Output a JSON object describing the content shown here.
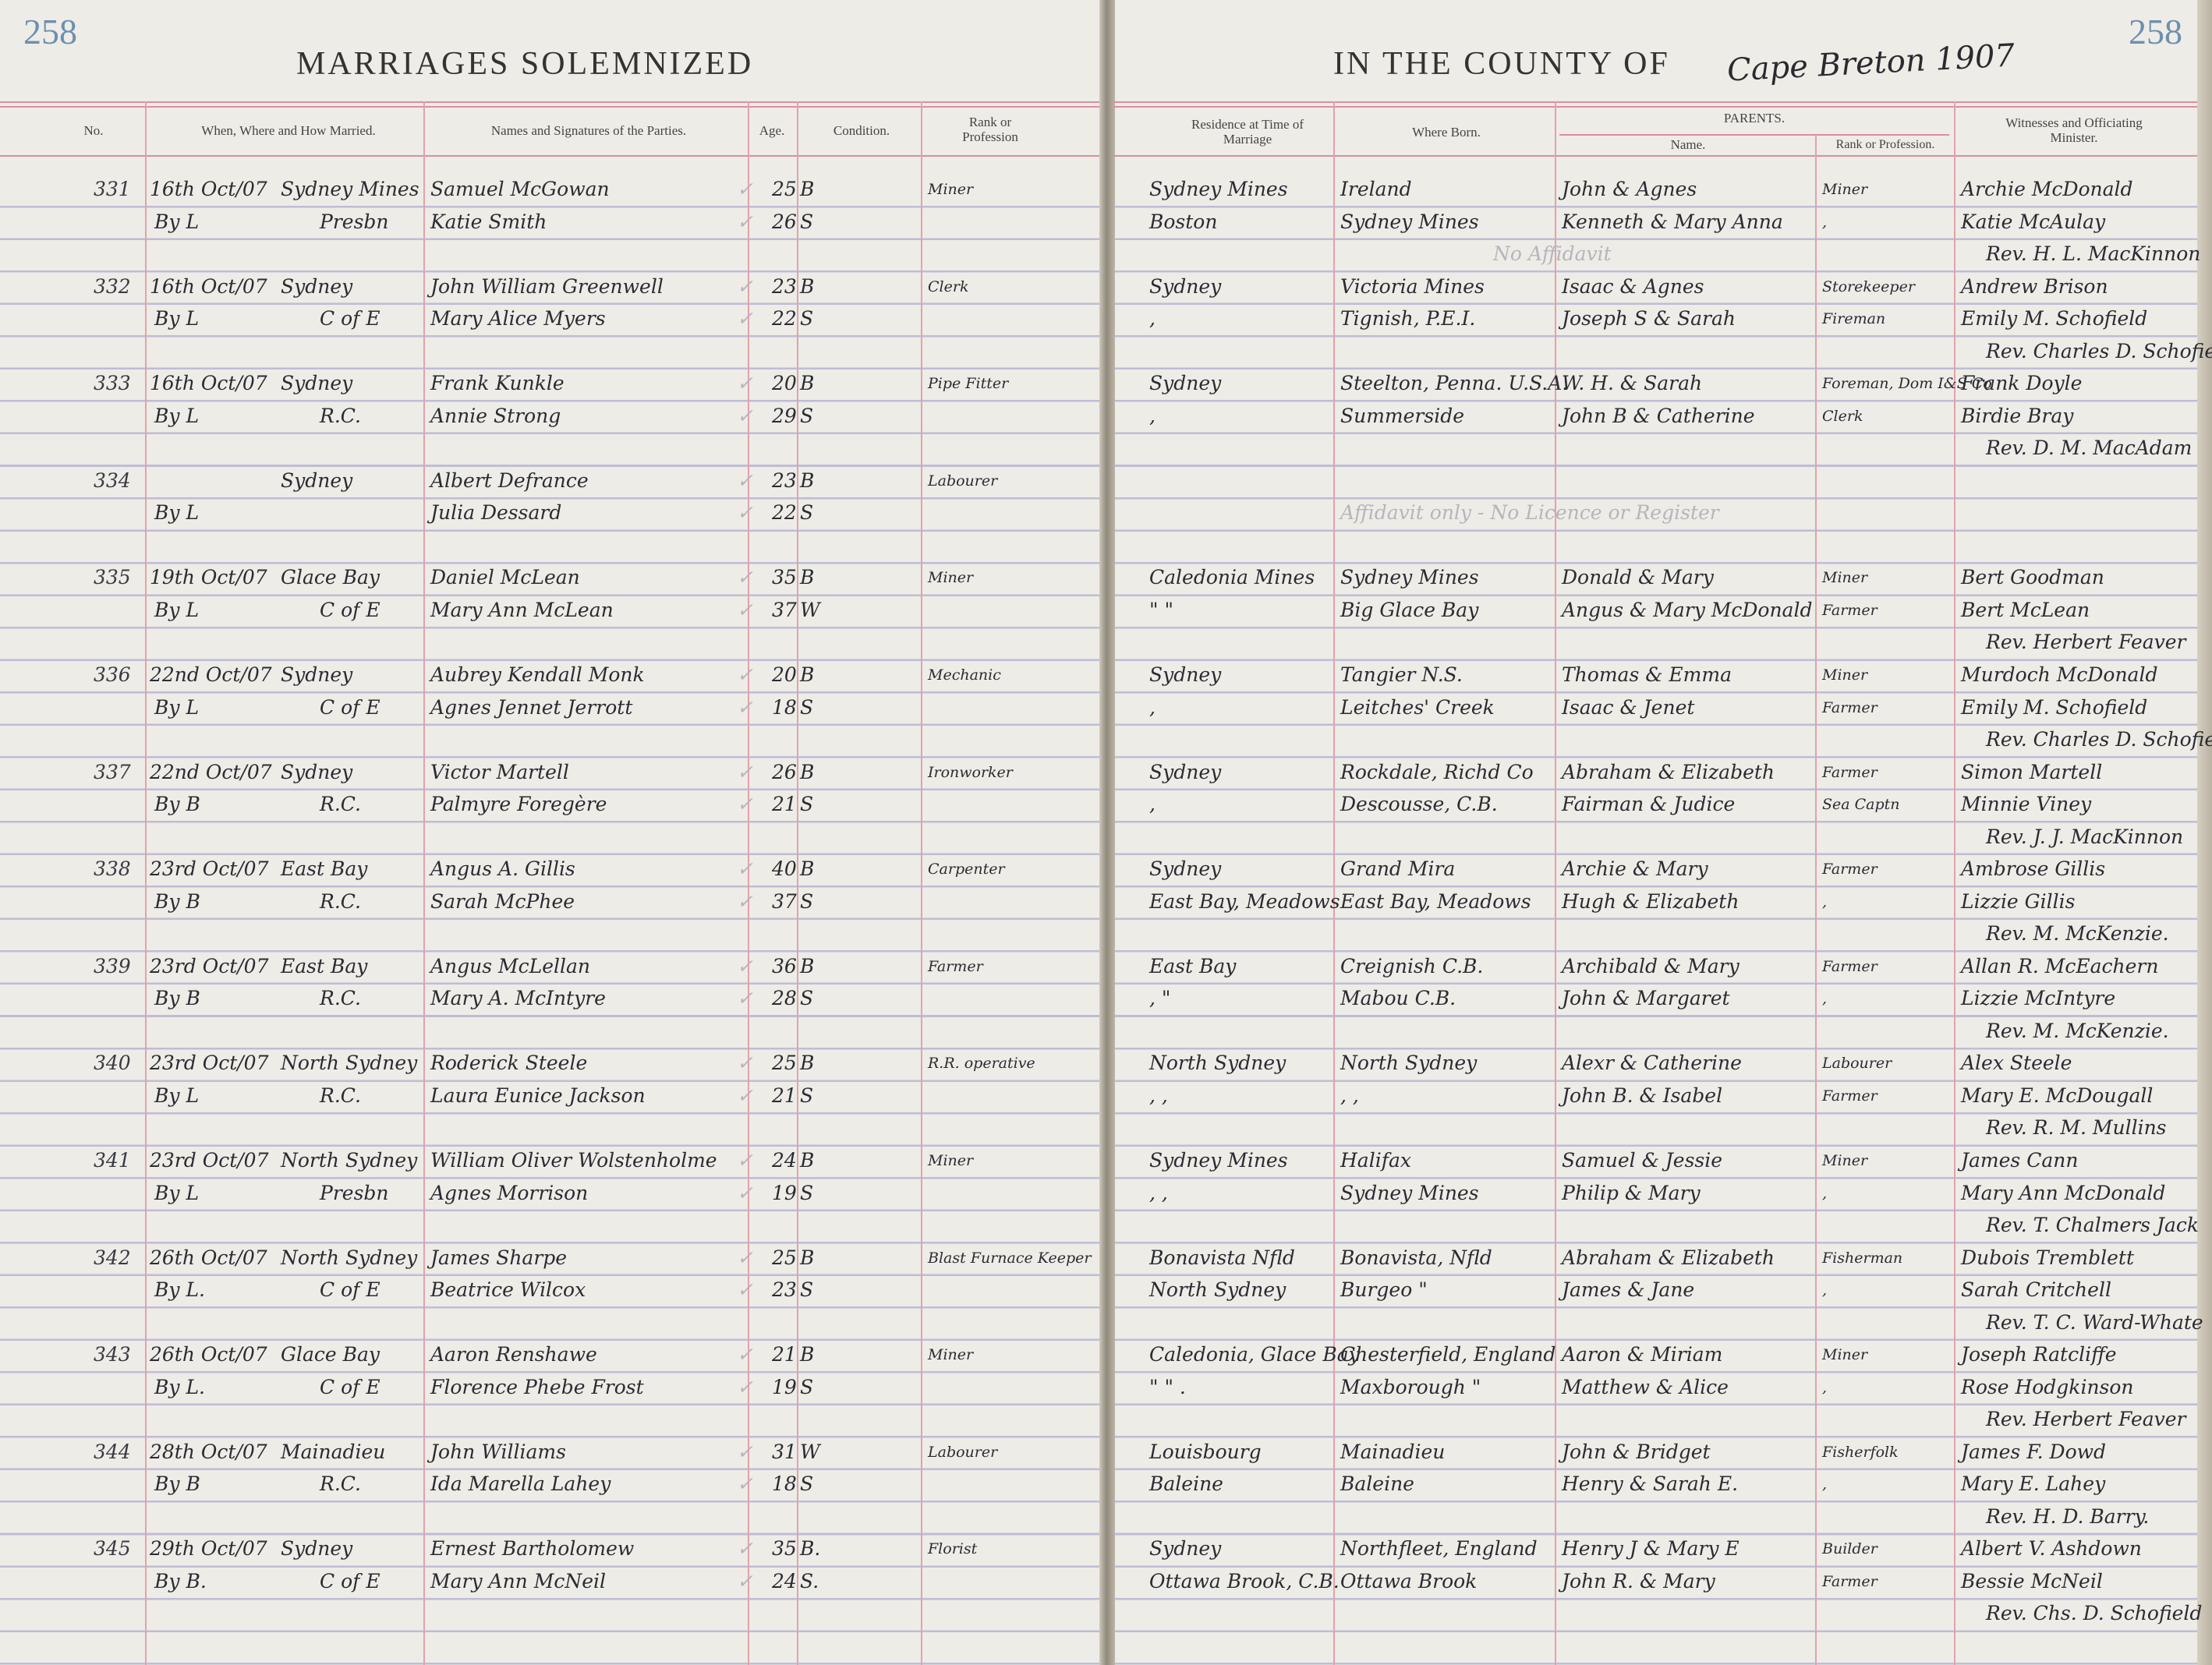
{
  "page_numbers": {
    "left": "258",
    "right": "258"
  },
  "title": {
    "left": "MARRIAGES SOLEMNIZED",
    "right": "IN THE COUNTY OF",
    "county_handwritten": "Cape Breton 1907"
  },
  "headers": {
    "no": "No.",
    "when_where_how": "When, Where and How Married.",
    "names": "Names and Signatures of the Parties.",
    "age": "Age.",
    "condition": "Condition.",
    "rank": "Rank or Profession",
    "residence": "Residence at Time of Marriage",
    "where_born": "Where Born.",
    "parents": "PARENTS.",
    "parents_name": "Name.",
    "parents_rank": "Rank or Profession.",
    "witnesses": "Witnesses and Officiating Minister."
  },
  "check_mark": "✓",
  "colors": {
    "ruling_red": "#d9909c",
    "ruling_blue": "#9696c8",
    "page_number_blue": "#6d8fb0",
    "ink": "#2b2b33"
  },
  "entries": [
    {
      "no": "331",
      "date": "16th Oct/07",
      "how": "By L",
      "place": "Sydney Mines",
      "denom": "Presbn",
      "groom": "Samuel McGowan",
      "bride": "Katie Smith",
      "groom_age": "25",
      "bride_age": "26",
      "groom_cond": "B",
      "bride_cond": "S",
      "profession": "Miner",
      "groom_res": "Sydney Mines",
      "bride_res": "Boston",
      "groom_born": "Ireland",
      "bride_born": "Sydney Mines",
      "groom_parents": "John & Agnes",
      "bride_parents": "Kenneth & Mary Anna",
      "groom_parents_rank": "Miner",
      "bride_parents_rank": ",",
      "witness1": "Archie McDonald",
      "witness2": "Katie McAulay",
      "minister": "Rev. H. L. MacKinnon",
      "note": "No Affidavit"
    },
    {
      "no": "332",
      "date": "16th Oct/07",
      "how": "By L",
      "place": "Sydney",
      "denom": "C of E",
      "groom": "John William Greenwell",
      "bride": "Mary Alice Myers",
      "groom_age": "23",
      "bride_age": "22",
      "groom_cond": "B",
      "bride_cond": "S",
      "profession": "Clerk",
      "groom_res": "Sydney",
      "bride_res": ",",
      "groom_born": "Victoria Mines",
      "bride_born": "Tignish, P.E.I.",
      "groom_parents": "Isaac & Agnes",
      "bride_parents": "Joseph S & Sarah",
      "groom_parents_rank": "Storekeeper",
      "bride_parents_rank": "Fireman",
      "witness1": "Andrew Brison",
      "witness2": "Emily M. Schofield",
      "minister": "Rev. Charles D. Schofield"
    },
    {
      "no": "333",
      "date": "16th Oct/07",
      "how": "By L",
      "place": "Sydney",
      "denom": "R.C.",
      "groom": "Frank Kunkle",
      "bride": "Annie Strong",
      "groom_age": "20",
      "bride_age": "29",
      "groom_cond": "B",
      "bride_cond": "S",
      "profession": "Pipe Fitter",
      "groom_res": "Sydney",
      "bride_res": ",",
      "groom_born": "Steelton, Penna. U.S.A.",
      "bride_born": "Summerside",
      "groom_parents": "W. H. & Sarah",
      "bride_parents": "John B & Catherine",
      "groom_parents_rank": "Foreman, Dom I&S Co",
      "bride_parents_rank": "Clerk",
      "witness1": "Frank Doyle",
      "witness2": "Birdie Bray",
      "minister": "Rev. D. M. MacAdam"
    },
    {
      "no": "334",
      "date": "",
      "how": "By L",
      "place": "Sydney",
      "denom": "",
      "groom": "Albert Defrance",
      "bride": "Julia Dessard",
      "groom_age": "23",
      "bride_age": "22",
      "groom_cond": "B",
      "bride_cond": "S",
      "profession": "Labourer",
      "groom_res": "",
      "bride_res": "",
      "groom_born": "",
      "bride_born": "",
      "groom_parents": "",
      "bride_parents": "",
      "groom_parents_rank": "",
      "bride_parents_rank": "",
      "witness1": "",
      "witness2": "",
      "minister": "",
      "note2": "Affidavit only - No Licence or Register"
    },
    {
      "no": "335",
      "date": "19th Oct/07",
      "how": "By L",
      "place": "Glace Bay",
      "denom": "C of E",
      "groom": "Daniel McLean",
      "bride": "Mary Ann McLean",
      "groom_age": "35",
      "bride_age": "37",
      "groom_cond": "B",
      "bride_cond": "W",
      "profession": "Miner",
      "groom_res": "Caledonia Mines",
      "bride_res": "\"   \"",
      "groom_born": "Sydney Mines",
      "bride_born": "Big Glace Bay",
      "groom_parents": "Donald & Mary",
      "bride_parents": "Angus & Mary McDonald",
      "groom_parents_rank": "Miner",
      "bride_parents_rank": "Farmer",
      "witness1": "Bert Goodman",
      "witness2": "Bert McLean",
      "minister": "Rev. Herbert Feaver"
    },
    {
      "no": "336",
      "date": "22nd Oct/07",
      "how": "By L",
      "place": "Sydney",
      "denom": "C of E",
      "groom": "Aubrey Kendall Monk",
      "bride": "Agnes Jennet Jerrott",
      "groom_age": "20",
      "bride_age": "18",
      "groom_cond": "B",
      "bride_cond": "S",
      "profession": "Mechanic",
      "groom_res": "Sydney",
      "bride_res": ",",
      "groom_born": "Tangier N.S.",
      "bride_born": "Leitches' Creek",
      "groom_parents": "Thomas & Emma",
      "bride_parents": "Isaac & Jenet",
      "groom_parents_rank": "Miner",
      "bride_parents_rank": "Farmer",
      "witness1": "Murdoch McDonald",
      "witness2": "Emily M. Schofield",
      "minister": "Rev. Charles D. Schofield"
    },
    {
      "no": "337",
      "date": "22nd Oct/07",
      "how": "By B",
      "place": "Sydney",
      "denom": "R.C.",
      "groom": "Victor Martell",
      "bride": "Palmyre Foregère",
      "groom_age": "26",
      "bride_age": "21",
      "groom_cond": "B",
      "bride_cond": "S",
      "profession": "Ironworker",
      "groom_res": "Sydney",
      "bride_res": ",",
      "groom_born": "Rockdale, Richd Co",
      "bride_born": "Descousse, C.B.",
      "groom_parents": "Abraham & Elizabeth",
      "bride_parents": "Fairman & Judice",
      "groom_parents_rank": "Farmer",
      "bride_parents_rank": "Sea Captn",
      "witness1": "Simon Martell",
      "witness2": "Minnie Viney",
      "minister": "Rev. J. J. MacKinnon"
    },
    {
      "no": "338",
      "date": "23rd Oct/07",
      "how": "By B",
      "place": "East Bay",
      "denom": "R.C.",
      "groom": "Angus A. Gillis",
      "bride": "Sarah McPhee",
      "groom_age": "40",
      "bride_age": "37",
      "groom_cond": "B",
      "bride_cond": "S",
      "profession": "Carpenter",
      "groom_res": "Sydney",
      "bride_res": "East Bay, Meadows",
      "groom_born": "Grand Mira",
      "bride_born": "East Bay, Meadows",
      "groom_parents": "Archie & Mary",
      "bride_parents": "Hugh & Elizabeth",
      "groom_parents_rank": "Farmer",
      "bride_parents_rank": ",",
      "witness1": "Ambrose Gillis",
      "witness2": "Lizzie Gillis",
      "minister": "Rev. M. McKenzie."
    },
    {
      "no": "339",
      "date": "23rd Oct/07",
      "how": "By B",
      "place": "East Bay",
      "denom": "R.C.",
      "groom": "Angus McLellan",
      "bride": "Mary A. McIntyre",
      "groom_age": "36",
      "bride_age": "28",
      "groom_cond": "B",
      "bride_cond": "S",
      "profession": "Farmer",
      "groom_res": "East Bay",
      "bride_res": ",   \"",
      "groom_born": "Creignish C.B.",
      "bride_born": "Mabou   C.B.",
      "groom_parents": "Archibald & Mary",
      "bride_parents": "John & Margaret",
      "groom_parents_rank": "Farmer",
      "bride_parents_rank": ",",
      "witness1": "Allan R. McEachern",
      "witness2": "Lizzie McIntyre",
      "minister": "Rev. M. McKenzie."
    },
    {
      "no": "340",
      "date": "23rd Oct/07",
      "how": "By L",
      "place": "North Sydney",
      "denom": "R.C.",
      "groom": "Roderick Steele",
      "bride": "Laura Eunice Jackson",
      "groom_age": "25",
      "bride_age": "21",
      "groom_cond": "B",
      "bride_cond": "S",
      "profession": "R.R. operative",
      "groom_res": "North Sydney",
      "bride_res": ",   ,",
      "groom_born": "North Sydney",
      "bride_born": ",   ,",
      "groom_parents": "Alexr & Catherine",
      "bride_parents": "John B. & Isabel",
      "groom_parents_rank": "Labourer",
      "bride_parents_rank": "Farmer",
      "witness1": "Alex Steele",
      "witness2": "Mary E. McDougall",
      "minister": "Rev. R. M. Mullins"
    },
    {
      "no": "341",
      "date": "23rd Oct/07",
      "how": "By L",
      "place": "North Sydney",
      "denom": "Presbn",
      "groom": "William Oliver Wolstenholme",
      "bride": "Agnes Morrison",
      "groom_age": "24",
      "bride_age": "19",
      "groom_cond": "B",
      "bride_cond": "S",
      "profession": "Miner",
      "groom_res": "Sydney Mines",
      "bride_res": ",   ,",
      "groom_born": "Halifax",
      "bride_born": "Sydney Mines",
      "groom_parents": "Samuel & Jessie",
      "bride_parents": "Philip & Mary",
      "groom_parents_rank": "Miner",
      "bride_parents_rank": ",",
      "witness1": "James Cann",
      "witness2": "Mary Ann McDonald",
      "minister": "Rev. T. Chalmers Jack"
    },
    {
      "no": "342",
      "date": "26th Oct/07",
      "how": "By L.",
      "place": "North Sydney",
      "denom": "C of E",
      "groom": "James Sharpe",
      "bride": "Beatrice Wilcox",
      "groom_age": "25",
      "bride_age": "23",
      "groom_cond": "B",
      "bride_cond": "S",
      "profession": "Blast Furnace Keeper",
      "groom_res": "Bonavista Nfld",
      "bride_res": "North Sydney",
      "groom_born": "Bonavista, Nfld",
      "bride_born": "Burgeo  \"",
      "groom_parents": "Abraham & Elizabeth",
      "bride_parents": "James & Jane",
      "groom_parents_rank": "Fisherman",
      "bride_parents_rank": ",",
      "witness1": "Dubois Tremblett",
      "witness2": "Sarah Critchell",
      "minister": "Rev. T. C. Ward-Whate"
    },
    {
      "no": "343",
      "date": "26th Oct/07",
      "how": "By L.",
      "place": "Glace Bay",
      "denom": "C of E",
      "groom": "Aaron Renshawe",
      "bride": "Florence Phebe Frost",
      "groom_age": "21",
      "bride_age": "19",
      "groom_cond": "B",
      "bride_cond": "S",
      "profession": "Miner",
      "groom_res": "Caledonia, Glace Bay",
      "bride_res": "\"   \"   .",
      "groom_born": "Chesterfield, England",
      "bride_born": "Maxborough  \"",
      "groom_parents": "Aaron & Miriam",
      "bride_parents": "Matthew & Alice",
      "groom_parents_rank": "Miner",
      "bride_parents_rank": ",",
      "witness1": "Joseph Ratcliffe",
      "witness2": "Rose Hodgkinson",
      "minister": "Rev. Herbert Feaver"
    },
    {
      "no": "344",
      "date": "28th Oct/07",
      "how": "By B",
      "place": "Mainadieu",
      "denom": "R.C.",
      "groom": "John Williams",
      "bride": "Ida Marella Lahey",
      "groom_age": "31",
      "bride_age": "18",
      "groom_cond": "W",
      "bride_cond": "S",
      "profession": "Labourer",
      "groom_res": "Louisbourg",
      "bride_res": "Baleine",
      "groom_born": "Mainadieu",
      "bride_born": "Baleine",
      "groom_parents": "John & Bridget",
      "bride_parents": "Henry & Sarah E.",
      "groom_parents_rank": "Fisherfolk",
      "bride_parents_rank": ",",
      "witness1": "James F. Dowd",
      "witness2": "Mary E. Lahey",
      "minister": "Rev. H. D. Barry."
    },
    {
      "no": "345",
      "date": "29th Oct/07",
      "how": "By B.",
      "place": "Sydney",
      "denom": "C of E",
      "groom": "Ernest Bartholomew",
      "bride": "Mary Ann McNeil",
      "groom_age": "35",
      "bride_age": "24",
      "groom_cond": "B.",
      "bride_cond": "S.",
      "profession": "Florist",
      "groom_res": "Sydney",
      "bride_res": "Ottawa Brook, C.B.",
      "groom_born": "Northfleet, England",
      "bride_born": "Ottawa Brook",
      "groom_parents": "Henry J & Mary E",
      "bride_parents": "John R. & Mary",
      "groom_parents_rank": "Builder",
      "bride_parents_rank": "Farmer",
      "witness1": "Albert V. Ashdown",
      "witness2": "Bessie McNeil",
      "minister": "Rev. Chs. D. Schofield"
    }
  ]
}
